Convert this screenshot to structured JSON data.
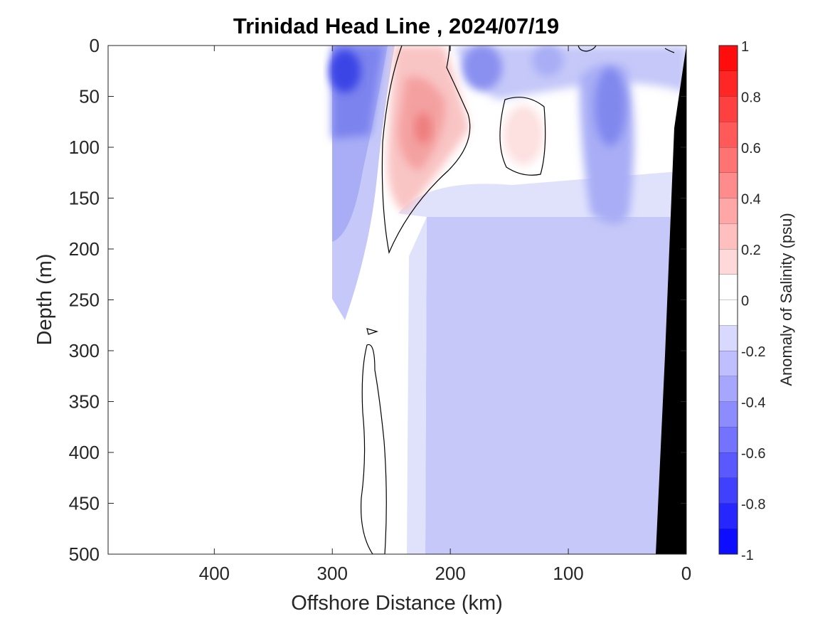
{
  "chart_data": {
    "type": "heatmap",
    "title": "Trinidad Head Line , 2024/07/19",
    "xlabel": "Offshore Distance (km)",
    "ylabel": "Depth (m)",
    "colorbar_label": "Anomaly of Salinity (psu)",
    "xlim": [
      490,
      0
    ],
    "ylim": [
      500,
      0
    ],
    "x_reversed": true,
    "y_reversed": true,
    "xticks": [
      400,
      300,
      200,
      100,
      0
    ],
    "xtick_labels": [
      "400",
      "300",
      "200",
      "100",
      "0"
    ],
    "yticks": [
      0,
      50,
      100,
      150,
      200,
      250,
      300,
      350,
      400,
      450,
      500
    ],
    "ytick_labels": [
      "0",
      "50",
      "100",
      "150",
      "200",
      "250",
      "300",
      "350",
      "400",
      "450",
      "500"
    ],
    "clim": [
      -1,
      1
    ],
    "color_levels": [
      -1,
      -0.9,
      -0.8,
      -0.7,
      -0.6,
      -0.5,
      -0.4,
      -0.3,
      -0.2,
      -0.1,
      0,
      0.1,
      0.2,
      0.3,
      0.4,
      0.5,
      0.6,
      0.7,
      0.8,
      0.9,
      1
    ],
    "colorbar_ticks": [
      1,
      0.8,
      0.6,
      0.4,
      0.2,
      0,
      -0.2,
      -0.4,
      -0.6,
      -0.8,
      -1
    ],
    "colorbar_tick_labels": [
      "1",
      "0.8",
      "0.6",
      "0.4",
      "0.2",
      "0",
      "-0.2",
      "-0.4",
      "-0.6",
      "-0.8",
      "-1"
    ],
    "colormap": "blue-white-red",
    "bathymetry_color": "#000000",
    "data_extent_km": [
      300,
      0
    ],
    "features": [
      {
        "kind": "deep-background",
        "x_range": [
          236,
          25
        ],
        "depth_range": [
          150,
          500
        ],
        "value": -0.25
      },
      {
        "kind": "nearshore-band",
        "x_range": [
          258,
          236
        ],
        "depth_range": [
          250,
          500
        ],
        "value": -0.15
      },
      {
        "kind": "offshore-fresh",
        "x_range": [
          300,
          240
        ],
        "depth_range": [
          0,
          230
        ],
        "value": -0.35
      },
      {
        "kind": "fresh-core",
        "x": 290,
        "depth": 25,
        "value": -0.8
      },
      {
        "kind": "salty-tongue",
        "x": 220,
        "depth": 85,
        "value": 0.35
      },
      {
        "kind": "salty-eddy",
        "x": 140,
        "depth": 85,
        "value": 0.15
      },
      {
        "kind": "fresh-core",
        "x": 170,
        "depth": 15,
        "value": -0.45
      },
      {
        "kind": "fresh-core",
        "x": 65,
        "depth": 70,
        "value": -0.5
      },
      {
        "kind": "surface-band",
        "x_range": [
          140,
          100
        ],
        "depth_range": [
          0,
          30
        ],
        "value": -0.3
      }
    ]
  }
}
